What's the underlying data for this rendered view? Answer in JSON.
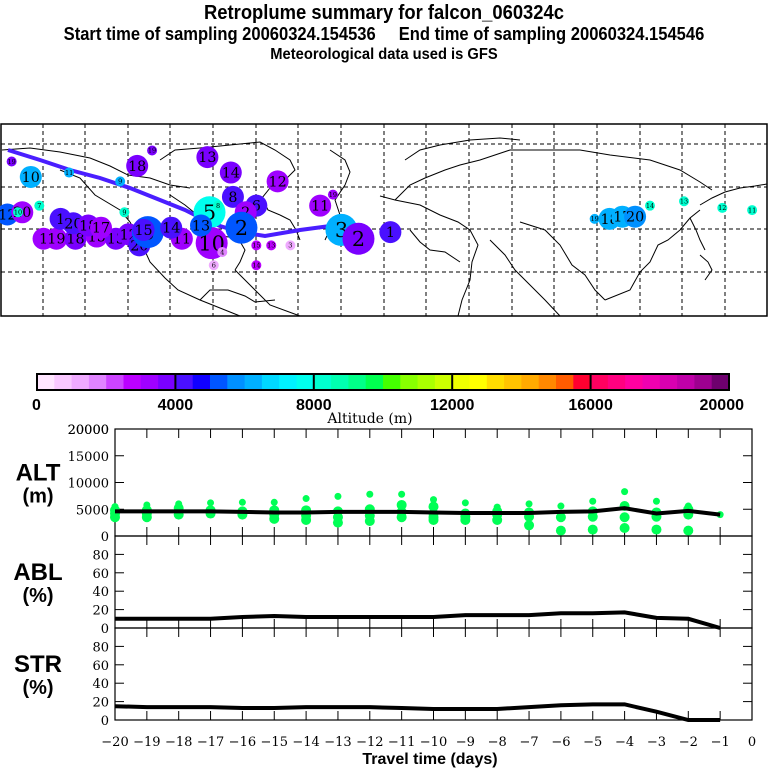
{
  "header": {
    "title": "Retroplume summary for falcon_060324c",
    "sampling_line": "Start time of sampling 20060324.154536     End time of sampling 20060324.154546",
    "met_line": "Meteorological data used is GFS"
  },
  "map": {
    "trajectory_color": "#4a1eff",
    "clusters": [
      {
        "label": "19",
        "lon": -175,
        "lat": 68,
        "alt": 3800,
        "r": "s"
      },
      {
        "label": "10",
        "lon": -166,
        "lat": 61,
        "alt": 6200,
        "r": "m"
      },
      {
        "label": "7",
        "lon": -162,
        "lat": 48,
        "alt": 8000,
        "r": "s"
      },
      {
        "label": "12",
        "lon": -177,
        "lat": 44,
        "alt": 5000,
        "r": "m"
      },
      {
        "label": "20",
        "lon": -170,
        "lat": 45,
        "alt": 3200,
        "r": "m"
      },
      {
        "label": "1",
        "lon": -160,
        "lat": 33,
        "alt": 3400,
        "r": "m"
      },
      {
        "label": "19",
        "lon": -154,
        "lat": 33,
        "alt": 3300,
        "r": "m"
      },
      {
        "label": "18",
        "lon": -145,
        "lat": 33,
        "alt": 3600,
        "r": "m"
      },
      {
        "label": "15",
        "lon": -135,
        "lat": 34,
        "alt": 3300,
        "r": "m"
      },
      {
        "label": "13",
        "lon": -126,
        "lat": 33,
        "alt": 3600,
        "r": "m"
      },
      {
        "label": "12",
        "lon": -120,
        "lat": 35,
        "alt": 3700,
        "r": "m"
      },
      {
        "label": "20",
        "lon": -115,
        "lat": 30,
        "alt": 4200,
        "r": "m"
      },
      {
        "label": "6",
        "lon": -111,
        "lat": 36,
        "alt": 5300,
        "r": "l"
      },
      {
        "label": "11",
        "lon": -95,
        "lat": 33,
        "alt": 3200,
        "r": "m"
      },
      {
        "label": "11",
        "lon": -148,
        "lat": 63,
        "alt": 6000,
        "r": "s"
      },
      {
        "label": "9",
        "lon": -124,
        "lat": 59,
        "alt": 6000,
        "r": "s"
      },
      {
        "label": "18",
        "lon": -116,
        "lat": 66,
        "alt": 3600,
        "r": "m"
      },
      {
        "label": "19",
        "lon": -109,
        "lat": 73,
        "alt": 3800,
        "r": "s"
      },
      {
        "label": "13",
        "lon": -83,
        "lat": 70,
        "alt": 3600,
        "r": "m"
      },
      {
        "label": "14",
        "lon": -72,
        "lat": 63,
        "alt": 3500,
        "r": "m"
      },
      {
        "label": "12",
        "lon": -50,
        "lat": 59,
        "alt": 3300,
        "r": "m"
      },
      {
        "label": "8",
        "lon": -71,
        "lat": 52,
        "alt": 4100,
        "r": "m"
      },
      {
        "label": "6",
        "lon": -60,
        "lat": 48,
        "alt": 4000,
        "r": "m"
      },
      {
        "label": "2",
        "lon": -65,
        "lat": 45,
        "alt": 3000,
        "r": "m"
      },
      {
        "label": "5",
        "lon": -82,
        "lat": 45,
        "alt": 7800,
        "r": "l"
      },
      {
        "label": "10",
        "lon": -81,
        "lat": 31,
        "alt": 3100,
        "r": "l"
      },
      {
        "label": "4",
        "lon": -76,
        "lat": 27,
        "alt": 1800,
        "r": "s"
      },
      {
        "label": "15",
        "lon": -60,
        "lat": 30,
        "alt": 2800,
        "r": "s"
      },
      {
        "label": "13",
        "lon": -53,
        "lat": 30,
        "alt": 2800,
        "r": "s"
      },
      {
        "label": "3",
        "lon": -44,
        "lat": 30,
        "alt": 1200,
        "r": "s"
      },
      {
        "label": "14",
        "lon": -60,
        "lat": 21,
        "alt": 2900,
        "r": "s"
      },
      {
        "label": "6",
        "lon": -80,
        "lat": 21,
        "alt": 1000,
        "r": "s"
      },
      {
        "label": "2",
        "lon": -67,
        "lat": 38,
        "alt": 5000,
        "r": "l"
      },
      {
        "label": "19",
        "lon": -24,
        "lat": 53,
        "alt": 3100,
        "r": "s"
      },
      {
        "label": "11",
        "lon": -30,
        "lat": 48,
        "alt": 3100,
        "r": "m"
      },
      {
        "label": "3",
        "lon": -20,
        "lat": 37,
        "alt": 6000,
        "r": "l"
      },
      {
        "label": "2",
        "lon": -12,
        "lat": 33,
        "alt": 3900,
        "r": "l"
      },
      {
        "label": "1",
        "lon": 3,
        "lat": 36,
        "alt": 4300,
        "r": "m"
      },
      {
        "label": "14",
        "lon": 125,
        "lat": 48,
        "alt": 8000,
        "r": "s"
      },
      {
        "label": "13",
        "lon": 141,
        "lat": 50,
        "alt": 8000,
        "r": "s"
      },
      {
        "label": "12",
        "lon": 159,
        "lat": 47,
        "alt": 8000,
        "r": "s"
      },
      {
        "label": "11",
        "lon": 173,
        "lat": 46,
        "alt": 8000,
        "r": "s"
      },
      {
        "label": "10",
        "lon": -172,
        "lat": 45,
        "alt": 8000,
        "r": "s"
      },
      {
        "label": "19",
        "lon": 99,
        "lat": 42,
        "alt": 6300,
        "r": "s"
      },
      {
        "label": "18",
        "lon": 106,
        "lat": 42,
        "alt": 6200,
        "r": "m"
      },
      {
        "label": "17",
        "lon": 112,
        "lat": 43,
        "alt": 6000,
        "r": "m"
      },
      {
        "label": "20",
        "lon": 118,
        "lat": 43,
        "alt": 5800,
        "r": "m"
      },
      {
        "label": "1",
        "lon": -152,
        "lat": 42,
        "alt": 4100,
        "r": "m"
      },
      {
        "label": "20",
        "lon": -146,
        "lat": 40,
        "alt": 4200,
        "r": "m"
      },
      {
        "label": "18",
        "lon": -139,
        "lat": 39,
        "alt": 3500,
        "r": "m"
      },
      {
        "label": "17",
        "lon": -133,
        "lat": 38,
        "alt": 3300,
        "r": "m"
      },
      {
        "label": "9",
        "lon": -122,
        "lat": 45,
        "alt": 8000,
        "r": "s"
      },
      {
        "label": "15",
        "lon": -113,
        "lat": 37,
        "alt": 4200,
        "r": "m"
      },
      {
        "label": "14",
        "lon": -100,
        "lat": 38,
        "alt": 4100,
        "r": "m"
      },
      {
        "label": "13",
        "lon": -86,
        "lat": 39,
        "alt": 5000,
        "r": "m"
      },
      {
        "label": "8",
        "lon": -78,
        "lat": 48,
        "alt": 8000,
        "r": "s"
      }
    ]
  },
  "colorbar": {
    "label": "Altitude (m)",
    "tick_labels": [
      "0",
      "4000",
      "8000",
      "12000",
      "16000",
      "20000"
    ],
    "colors": [
      "#ffe6ff",
      "#f9c8ff",
      "#efaaff",
      "#e084ff",
      "#cc44ff",
      "#bb00ff",
      "#9f00ff",
      "#7a00ff",
      "#4a10ff",
      "#1000ff",
      "#0056ff",
      "#0090ff",
      "#00b0ff",
      "#00d8ff",
      "#00f2ff",
      "#00ffee",
      "#00ffd0",
      "#00ffb0",
      "#00ff88",
      "#00ff50",
      "#44ff00",
      "#88ff00",
      "#aaff00",
      "#ccff00",
      "#eeff00",
      "#ffff00",
      "#ffdd00",
      "#ffc400",
      "#ffaa00",
      "#ff8800",
      "#ff5c00",
      "#ff0030",
      "#ff0060",
      "#ff0080",
      "#ff00a0",
      "#f000b0",
      "#d800b0",
      "#bf00a8",
      "#9e0090",
      "#6e006e"
    ]
  },
  "chart_data": [
    {
      "type": "scatter",
      "panel": "ALT",
      "ylabel": "ALT\n(m)",
      "ylabel_lines": [
        "ALT",
        "(m)"
      ],
      "ylim": [
        0,
        20000
      ],
      "yticks": [
        "0",
        "5000",
        "10000",
        "15000",
        "20000"
      ],
      "x": [
        -20,
        -19,
        -18,
        -17,
        -16,
        -15,
        -14,
        -13,
        -12,
        -11,
        -10,
        -9,
        -8,
        -7,
        -6,
        -5,
        -4,
        -3,
        -2,
        -1
      ],
      "line": [
        4600,
        4600,
        4600,
        4600,
        4500,
        4400,
        4400,
        4500,
        4500,
        4500,
        4400,
        4300,
        4300,
        4300,
        4500,
        4600,
        5200,
        4200,
        4700,
        4000
      ],
      "cluster_points": [
        [
          3500,
          4200,
          4800,
          5500
        ],
        [
          3500,
          4200,
          4800,
          5800
        ],
        [
          4000,
          4600,
          5200,
          6000
        ],
        [
          4200,
          4800,
          6200
        ],
        [
          4000,
          4600,
          6300
        ],
        [
          3200,
          4000,
          4800,
          6300
        ],
        [
          3000,
          3800,
          4800,
          7000
        ],
        [
          2500,
          3500,
          4600,
          7400
        ],
        [
          2800,
          3800,
          5000,
          7800
        ],
        [
          3500,
          4500,
          5800,
          7800
        ],
        [
          3000,
          3500,
          4200,
          5500,
          6800
        ],
        [
          3000,
          3600,
          4200,
          6200
        ],
        [
          3000,
          4000,
          4600,
          5400
        ],
        [
          2000,
          3600,
          4400,
          6000
        ],
        [
          1000,
          3500,
          5600
        ],
        [
          1200,
          3600,
          4600,
          6500
        ],
        [
          1500,
          3500,
          5600,
          8300
        ],
        [
          1200,
          3600,
          4400,
          6500
        ],
        [
          1000,
          4000,
          5000,
          5600
        ],
        [
          4000
        ]
      ],
      "cluster_color": "#00ff55",
      "line_color": "#000000"
    },
    {
      "type": "line",
      "panel": "ABL",
      "ylabel_lines": [
        "ABL",
        "(%)"
      ],
      "ylim": [
        0,
        100
      ],
      "yticks": [
        "0",
        "20",
        "40",
        "60",
        "80"
      ],
      "x": [
        -20,
        -19,
        -18,
        -17,
        -16,
        -15,
        -14,
        -13,
        -12,
        -11,
        -10,
        -9,
        -8,
        -7,
        -6,
        -5,
        -4,
        -3,
        -2,
        -1
      ],
      "values": [
        10,
        10,
        10,
        10,
        12,
        13,
        12,
        12,
        12,
        12,
        12,
        14,
        14,
        14,
        16,
        16,
        17,
        11,
        10,
        0
      ]
    },
    {
      "type": "line",
      "panel": "STR",
      "ylabel_lines": [
        "STR",
        "(%)"
      ],
      "ylim": [
        0,
        100
      ],
      "yticks": [
        "0",
        "20",
        "40",
        "60",
        "80"
      ],
      "x": [
        -20,
        -19,
        -18,
        -17,
        -16,
        -15,
        -14,
        -13,
        -12,
        -11,
        -10,
        -9,
        -8,
        -7,
        -6,
        -5,
        -4,
        -3,
        -2,
        -1
      ],
      "values": [
        15,
        14,
        14,
        14,
        13,
        13,
        14,
        14,
        14,
        13,
        12,
        12,
        12,
        14,
        16,
        17,
        17,
        9,
        0,
        0
      ]
    }
  ],
  "xaxis": {
    "label": "Travel time (days)",
    "ticks": [
      "-20",
      "-19",
      "-18",
      "-17",
      "-16",
      "-15",
      "-14",
      "-13",
      "-12",
      "-11",
      "-10",
      "-9",
      "-8",
      "-7",
      "-6",
      "-5",
      "-4",
      "-3",
      "-2",
      "-1",
      "0"
    ]
  }
}
